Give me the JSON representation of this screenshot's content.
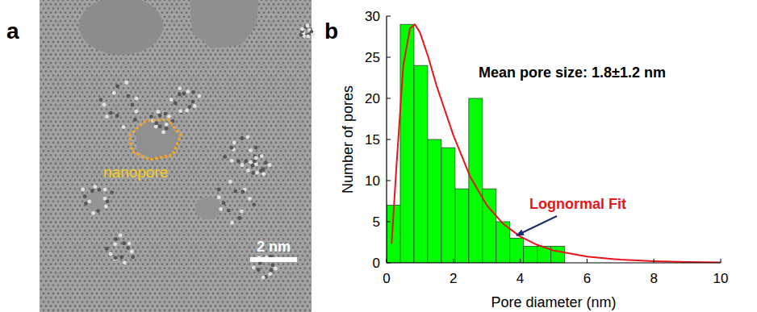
{
  "image_panel": {
    "panel_label": "a",
    "annotation": "nanopore",
    "scale_bar": "2 nm"
  },
  "chart_data": {
    "type": "histogram",
    "panel_label": "b",
    "x_label": "Pore diameter (nm)",
    "y_label": "Number of pores",
    "bins": [
      0,
      0.41,
      0.82,
      1.23,
      1.64,
      2.05,
      2.46,
      2.87,
      3.28,
      3.69,
      4.1,
      4.51,
      4.92,
      5.33
    ],
    "values": [
      7,
      29,
      24,
      15,
      14,
      9,
      20,
      9,
      5,
      3,
      2,
      2,
      2
    ],
    "color": "#00ff00",
    "xlim": [
      0,
      10
    ],
    "ylim": [
      0,
      30
    ],
    "xticks": [
      0,
      2,
      4,
      6,
      8,
      10
    ],
    "yticks": [
      0,
      5,
      10,
      15,
      20,
      25,
      30
    ],
    "annotations": [
      "Mean pore size: 1.8±1.2 nm"
    ],
    "series": [
      {
        "name": "Lognormal Fit",
        "type": "line",
        "color": "#e8141b",
        "x": [
          0.15,
          0.3,
          0.5,
          0.7,
          0.85,
          1.0,
          1.25,
          1.5,
          2.0,
          2.5,
          3.0,
          3.5,
          4.0,
          4.5,
          5.0,
          6.0,
          7.0,
          8.0,
          9.0,
          10.0
        ],
        "values": [
          2.3,
          12,
          24,
          28.5,
          29,
          28,
          25,
          21.5,
          15.5,
          10.5,
          7,
          4.7,
          3.2,
          2.2,
          1.5,
          0.75,
          0.38,
          0.2,
          0.1,
          0.06
        ]
      }
    ]
  }
}
